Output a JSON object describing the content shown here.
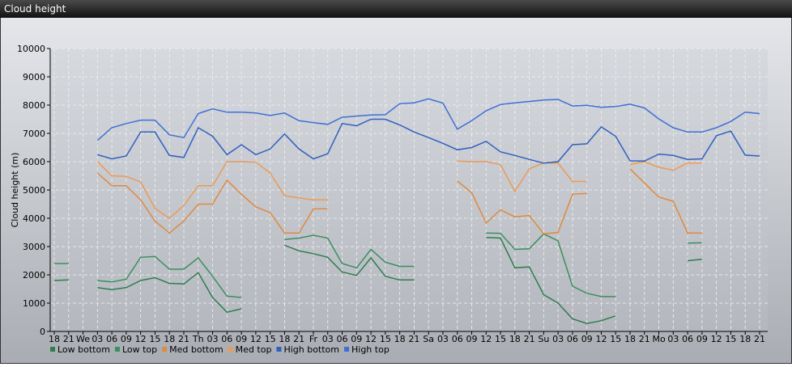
{
  "chart_data": {
    "type": "line",
    "title": "Cloud height",
    "y_label": "Cloud height (m)",
    "categories": [
      "18",
      "21",
      "We",
      "03",
      "06",
      "09",
      "12",
      "15",
      "18",
      "21",
      "Th",
      "03",
      "06",
      "09",
      "12",
      "15",
      "18",
      "21",
      "Fr",
      "03",
      "06",
      "09",
      "12",
      "15",
      "18",
      "21",
      "Sa",
      "03",
      "06",
      "09",
      "12",
      "15",
      "18",
      "21",
      "Su",
      "03",
      "06",
      "09",
      "12",
      "15",
      "18",
      "21",
      "Mo",
      "03",
      "06",
      "09",
      "12",
      "15",
      "18",
      "21"
    ],
    "ylim": [
      0,
      10000
    ],
    "yticks": [
      0,
      1000,
      2000,
      3000,
      4000,
      5000,
      6000,
      7000,
      8000,
      9000,
      10000
    ],
    "grid": true,
    "legend": "bottom",
    "series": [
      {
        "name": "Low bottom",
        "color": "#2e7d4f",
        "values": [
          1800,
          1820,
          null,
          1550,
          1480,
          1550,
          1800,
          1900,
          1700,
          1680,
          2080,
          1200,
          680,
          800,
          null,
          null,
          3050,
          2850,
          2750,
          2620,
          2100,
          1980,
          2600,
          1950,
          1820,
          1820,
          null,
          null,
          null,
          null,
          3320,
          3300,
          2250,
          2280,
          1300,
          1000,
          450,
          280,
          380,
          550,
          null,
          null,
          null,
          null,
          2500,
          2550,
          null,
          null,
          null,
          null
        ]
      },
      {
        "name": "Low top",
        "color": "#3a8f5e",
        "values": [
          2400,
          2400,
          null,
          1800,
          1750,
          1850,
          2620,
          2650,
          2200,
          2200,
          2600,
          1950,
          1250,
          1200,
          null,
          null,
          3250,
          3300,
          3400,
          3300,
          2400,
          2250,
          2900,
          2450,
          2300,
          2300,
          null,
          null,
          null,
          null,
          3480,
          3470,
          2900,
          2920,
          3450,
          3200,
          1600,
          1350,
          1230,
          1230,
          null,
          null,
          null,
          null,
          3120,
          3130,
          null,
          null,
          null,
          null
        ]
      },
      {
        "name": "Med bottom",
        "color": "#e08a3c",
        "values": [
          null,
          null,
          null,
          5600,
          5150,
          5150,
          4650,
          3900,
          3480,
          3900,
          4500,
          4500,
          5350,
          4850,
          4400,
          4200,
          3480,
          3480,
          4330,
          4330,
          null,
          null,
          null,
          null,
          null,
          null,
          null,
          null,
          5320,
          4900,
          3830,
          4300,
          4050,
          4100,
          3450,
          3500,
          4850,
          4880,
          null,
          null,
          5750,
          5250,
          4750,
          4600,
          3480,
          3480,
          null,
          null,
          null,
          null
        ]
      },
      {
        "name": "Med top",
        "color": "#ee9a50",
        "values": [
          null,
          null,
          null,
          6000,
          5500,
          5480,
          5280,
          4350,
          4000,
          4450,
          5150,
          5150,
          6000,
          6000,
          5980,
          5600,
          4800,
          4720,
          4650,
          4650,
          null,
          null,
          null,
          null,
          null,
          null,
          null,
          null,
          6020,
          6000,
          6000,
          5900,
          4950,
          5750,
          5950,
          5950,
          5300,
          5300,
          null,
          null,
          5900,
          6000,
          5800,
          5700,
          5950,
          5950,
          null,
          null,
          null,
          null
        ]
      },
      {
        "name": "High bottom",
        "color": "#2f5fc4",
        "values": [
          null,
          null,
          null,
          6250,
          6100,
          6200,
          7050,
          7050,
          6220,
          6150,
          7200,
          6900,
          6250,
          6600,
          6250,
          6450,
          6980,
          6450,
          6100,
          6280,
          7350,
          7270,
          7500,
          7500,
          7300,
          7050,
          6850,
          6650,
          6420,
          6500,
          6720,
          6350,
          6220,
          6080,
          5950,
          6000,
          6600,
          6630,
          7230,
          6900,
          6030,
          6020,
          6270,
          6220,
          6080,
          6100,
          6920,
          7080,
          6230,
          6200
        ]
      },
      {
        "name": "High top",
        "color": "#3d6fd8",
        "values": [
          null,
          null,
          null,
          6750,
          7200,
          7350,
          7470,
          7470,
          6950,
          6850,
          7700,
          7870,
          7750,
          7750,
          7720,
          7630,
          7720,
          7450,
          7380,
          7320,
          7570,
          7610,
          7650,
          7660,
          8050,
          8080,
          8220,
          8070,
          7150,
          7450,
          7800,
          8020,
          8080,
          8130,
          8180,
          8200,
          7970,
          7990,
          7920,
          7950,
          8030,
          7900,
          7510,
          7200,
          7050,
          7050,
          7200,
          7420,
          7750,
          7700
        ]
      }
    ]
  }
}
